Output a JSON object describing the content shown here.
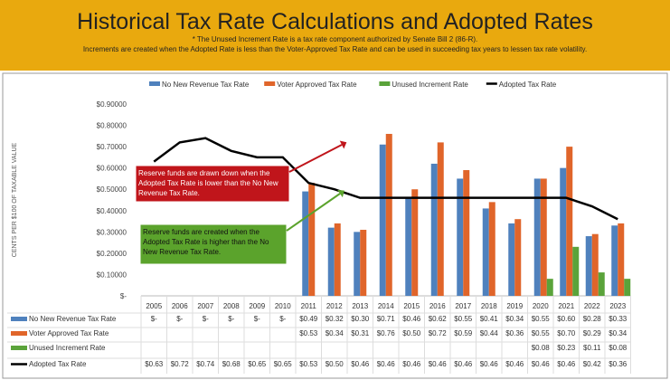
{
  "header": {
    "title": "Historical Tax Rate Calculations and Adopted Rates",
    "note1": "* The Unused Increment Rate is a tax rate component authorized by Senate Bill 2 (86-R).",
    "note2": "Increments are created when the Adopted  Rate is less than the Voter-Approved Tax Rate and can be used in succeeding tax years to lessen tax rate volatility."
  },
  "chart_data": {
    "type": "bar",
    "ylabel": "CENTS PER $100 OF TAXABLE VALUE",
    "ylim": [
      0,
      0.9
    ],
    "yticks": [
      "$-",
      "$0.10000",
      "$0.20000",
      "$0.30000",
      "$0.40000",
      "$0.50000",
      "$0.60000",
      "$0.70000",
      "$0.80000",
      "$0.90000"
    ],
    "categories": [
      "2005",
      "2006",
      "2007",
      "2008",
      "2009",
      "2010",
      "2011",
      "2012",
      "2013",
      "2014",
      "2015",
      "2016",
      "2017",
      "2018",
      "2019",
      "2020",
      "2021",
      "2022",
      "2023"
    ],
    "legend": "top",
    "series": [
      {
        "name": "No New Revenue Tax Rate",
        "kind": "bar",
        "color": "#4F81BD",
        "values": [
          0,
          0,
          0,
          0,
          0,
          0,
          0.49,
          0.32,
          0.3,
          0.71,
          0.46,
          0.62,
          0.55,
          0.41,
          0.34,
          0.55,
          0.6,
          0.28,
          0.33
        ],
        "labels": [
          "$-",
          "$-",
          "$-",
          "$-",
          "$-",
          "$-",
          "$0.49",
          "$0.32",
          "$0.30",
          "$0.71",
          "$0.46",
          "$0.62",
          "$0.55",
          "$0.41",
          "$0.34",
          "$0.55",
          "$0.60",
          "$0.28",
          "$0.33"
        ]
      },
      {
        "name": "Voter Approved Tax Rate",
        "kind": "bar",
        "color": "#E0652A",
        "values": [
          null,
          null,
          null,
          null,
          null,
          null,
          0.53,
          0.34,
          0.31,
          0.76,
          0.5,
          0.72,
          0.59,
          0.44,
          0.36,
          0.55,
          0.7,
          0.29,
          0.34
        ],
        "labels": [
          "",
          "",
          "",
          "",
          "",
          "",
          "$0.53",
          "$0.34",
          "$0.31",
          "$0.76",
          "$0.50",
          "$0.72",
          "$0.59",
          "$0.44",
          "$0.36",
          "$0.55",
          "$0.70",
          "$0.29",
          "$0.34"
        ]
      },
      {
        "name": "Unused Increment Rate",
        "kind": "bar",
        "color": "#5AA33A",
        "values": [
          null,
          null,
          null,
          null,
          null,
          null,
          null,
          null,
          null,
          null,
          null,
          null,
          null,
          null,
          null,
          0.08,
          0.23,
          0.11,
          0.08
        ],
        "labels": [
          "",
          "",
          "",
          "",
          "",
          "",
          "",
          "",
          "",
          "",
          "",
          "",
          "",
          "",
          "",
          "$0.08",
          "$0.23",
          "$0.11",
          "$0.08"
        ]
      },
      {
        "name": "Adopted Tax Rate",
        "kind": "line",
        "color": "#000000",
        "values": [
          0.63,
          0.72,
          0.74,
          0.68,
          0.65,
          0.65,
          0.53,
          0.5,
          0.46,
          0.46,
          0.46,
          0.46,
          0.46,
          0.46,
          0.46,
          0.46,
          0.46,
          0.42,
          0.36
        ],
        "labels": [
          "$0.63",
          "$0.72",
          "$0.74",
          "$0.68",
          "$0.65",
          "$0.65",
          "$0.53",
          "$0.50",
          "$0.46",
          "$0.46",
          "$0.46",
          "$0.46",
          "$0.46",
          "$0.46",
          "$0.46",
          "$0.46",
          "$0.46",
          "$0.42",
          "$0.36"
        ]
      }
    ],
    "annotations": [
      {
        "text": "Reserve funds are drawn down when the Adopted Tax Rate is lower than the No New Revenue Tax Rate.",
        "color": "#C0151B"
      },
      {
        "text": "Reserve funds are created when the Adopted Tax Rate is higher than the No New Revenue Tax Rate.",
        "color": "#5BA32C"
      }
    ]
  }
}
